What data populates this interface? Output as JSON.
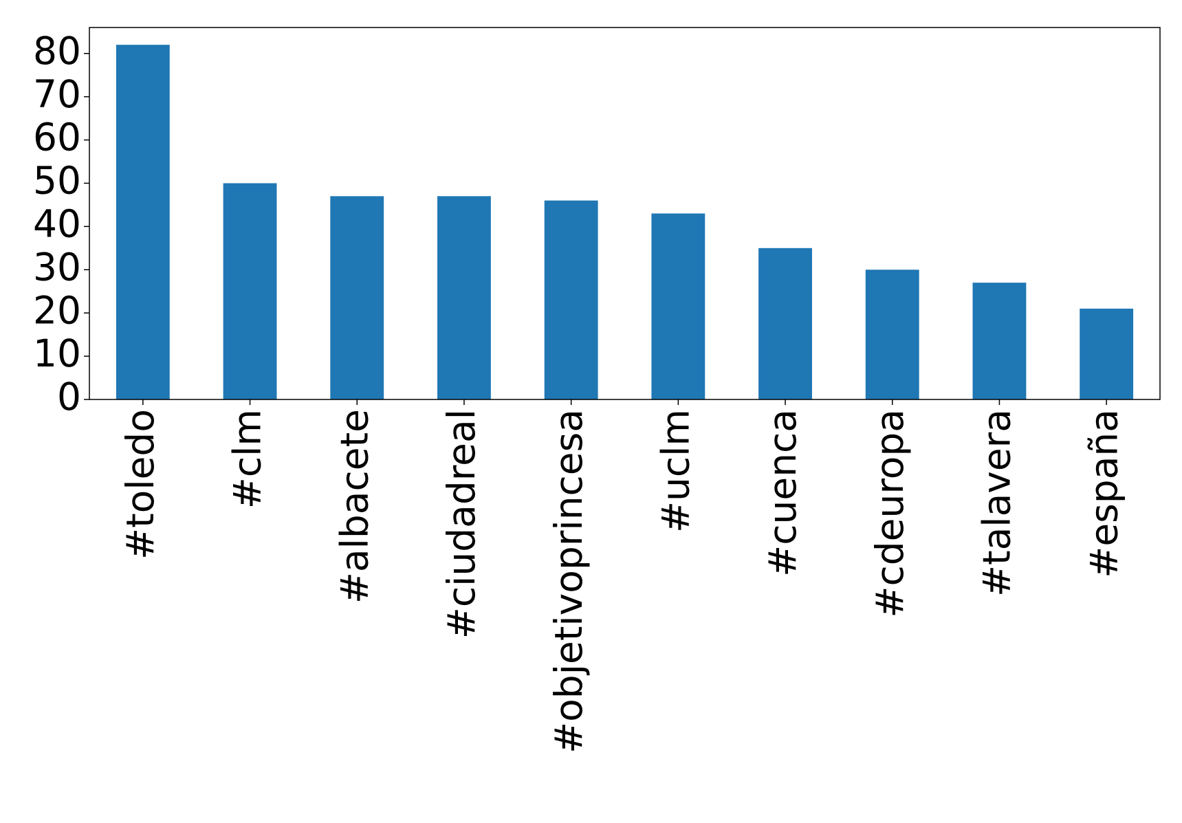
{
  "chart_data": {
    "type": "bar",
    "categories": [
      "#toledo",
      "#clm",
      "#albacete",
      "#ciudadreal",
      "#objetivoprincesa",
      "#uclm",
      "#cuenca",
      "#cdeuropa",
      "#talavera",
      "#españa"
    ],
    "values": [
      82,
      50,
      47,
      47,
      46,
      43,
      35,
      30,
      27,
      21
    ],
    "color": "#1f77b4",
    "ylim": [
      0,
      86
    ],
    "yticks": [
      0,
      10,
      20,
      30,
      40,
      50,
      60,
      70,
      80
    ],
    "grid": false
  }
}
